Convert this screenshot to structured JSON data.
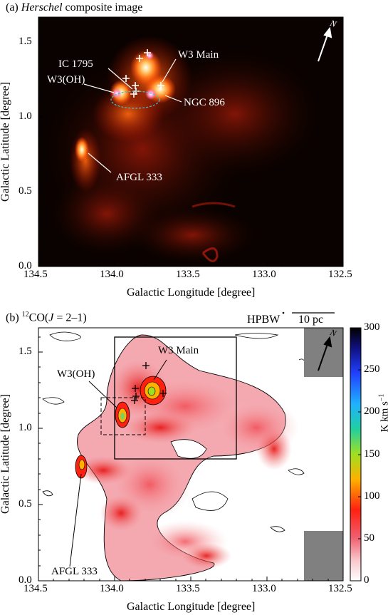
{
  "panel_a": {
    "label_prefix": "(a) ",
    "label_italic": "Herschel",
    "label_suffix": " composite image",
    "xlabel": "Galactic Longitude [degree]",
    "ylabel": "Galactic Latitude [degree]",
    "xticks": [
      "134.5",
      "134.0",
      "133.5",
      "133.0",
      "132.5"
    ],
    "yticks": [
      "1.5",
      "1.0",
      "0.5",
      "0.0"
    ],
    "annotations": {
      "w3_main": "W3 Main",
      "ic1795": "IC 1795",
      "w3oh": "W3(OH)",
      "ngc896": "NGC 896",
      "afgl333": "AFGL 333",
      "north": "N"
    }
  },
  "panel_b": {
    "label_prefix": "(b) ",
    "label_sup": "12",
    "label_mid": "CO(",
    "label_italic": "J",
    "label_suffix": " = 2–1)",
    "hpbw": "HPBW",
    "scale": "10 pc",
    "xlabel": "Galactic Longitude [degree]",
    "ylabel": "Galactic Latitude [degree]",
    "xticks": [
      "134.5",
      "134.0",
      "133.5",
      "133.0",
      "132.5"
    ],
    "yticks": [
      "1.5",
      "1.0",
      "0.5",
      "0.0"
    ],
    "colorbar": {
      "ticks": [
        "300",
        "250",
        "200",
        "150",
        "100",
        "50",
        "0"
      ],
      "label": "K km s",
      "label_sup": "−1"
    },
    "annotations": {
      "w3_main": "W3 Main",
      "w3oh": "W3(OH)",
      "afgl333": "AFGL 333",
      "north": "N"
    }
  }
}
